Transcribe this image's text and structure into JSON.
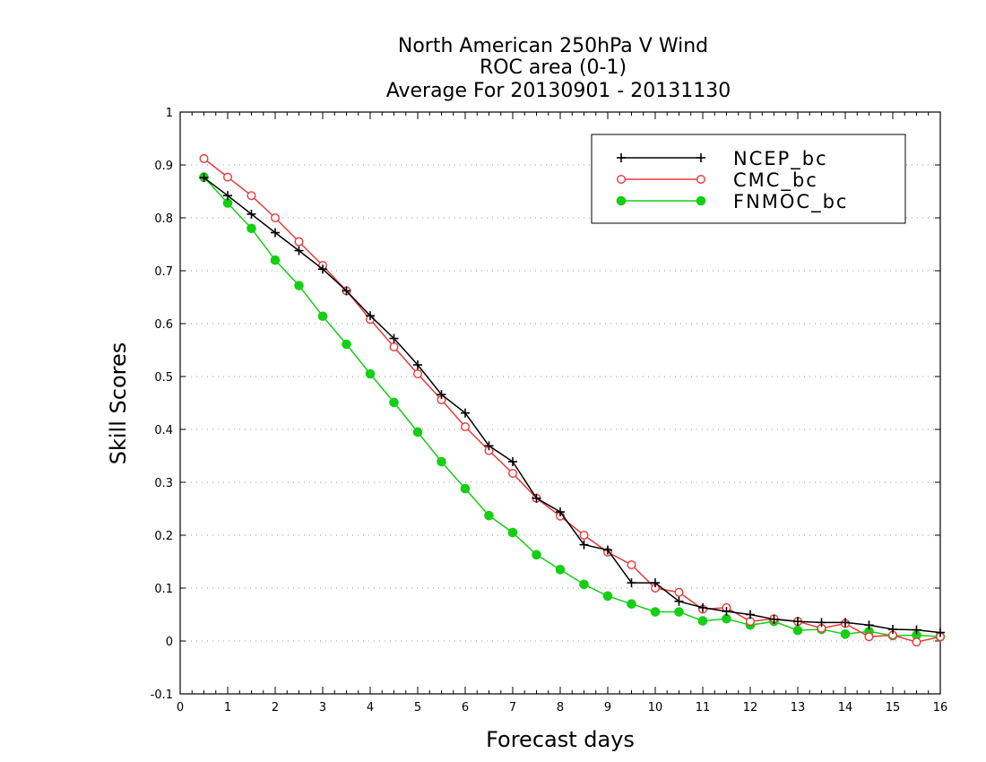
{
  "chart_data": {
    "type": "line",
    "title": [
      "North American 250hPa V Wind",
      "ROC area (0-1)",
      "Average For 20130901 - 20131130"
    ],
    "xlabel": "Forecast days",
    "ylabel": "Skill Scores",
    "xlim": [
      0,
      16
    ],
    "ylim": [
      -0.1,
      1
    ],
    "xticks": [
      "0",
      "1",
      "2",
      "3",
      "4",
      "5",
      "6",
      "7",
      "8",
      "9",
      "10",
      "11",
      "12",
      "13",
      "14",
      "15",
      "16"
    ],
    "yticks": [
      "-0.1",
      "0",
      "0.1",
      "0.2",
      "0.3",
      "0.4",
      "0.5",
      "0.6",
      "0.7",
      "0.8",
      "0.9",
      "1"
    ],
    "grid": "horizontal dotted",
    "legend_position": "top-right",
    "x": [
      0.5,
      1,
      1.5,
      2,
      2.5,
      3,
      3.5,
      4,
      4.5,
      5,
      5.5,
      6,
      6.5,
      7,
      7.5,
      8,
      8.5,
      9,
      9.5,
      10,
      10.5,
      11,
      11.5,
      12,
      12.5,
      13,
      13.5,
      14,
      14.5,
      15,
      15.5,
      16
    ],
    "series": [
      {
        "name": "NCEP_bc",
        "color": "#000000",
        "marker": "plus",
        "values": [
          0.876,
          0.842,
          0.807,
          0.772,
          0.738,
          0.703,
          0.662,
          0.615,
          0.572,
          0.522,
          0.466,
          0.431,
          0.369,
          0.339,
          0.27,
          0.244,
          0.182,
          0.172,
          0.11,
          0.11,
          0.075,
          0.063,
          0.056,
          0.05,
          0.041,
          0.037,
          0.035,
          0.035,
          0.03,
          0.022,
          0.021,
          0.016
        ]
      },
      {
        "name": "CMC_bc",
        "color": "#e8393b",
        "marker": "open-circle",
        "values": [
          0.912,
          0.877,
          0.842,
          0.8,
          0.755,
          0.71,
          0.662,
          0.608,
          0.556,
          0.505,
          0.456,
          0.405,
          0.36,
          0.317,
          0.27,
          0.236,
          0.2,
          0.168,
          0.144,
          0.1,
          0.092,
          0.06,
          0.063,
          0.037,
          0.042,
          0.037,
          0.024,
          0.033,
          0.008,
          0.011,
          -0.002,
          0.008
        ]
      },
      {
        "name": "FNMOC_bc",
        "color": "#15cf15",
        "marker": "filled-circle",
        "values": [
          0.877,
          0.828,
          0.78,
          0.72,
          0.672,
          0.614,
          0.561,
          0.505,
          0.451,
          0.395,
          0.339,
          0.288,
          0.237,
          0.205,
          0.163,
          0.135,
          0.107,
          0.085,
          0.07,
          0.055,
          0.055,
          0.038,
          0.042,
          0.03,
          0.037,
          0.02,
          0.022,
          0.013,
          0.018,
          0.01,
          0.011,
          0.008
        ]
      }
    ]
  }
}
